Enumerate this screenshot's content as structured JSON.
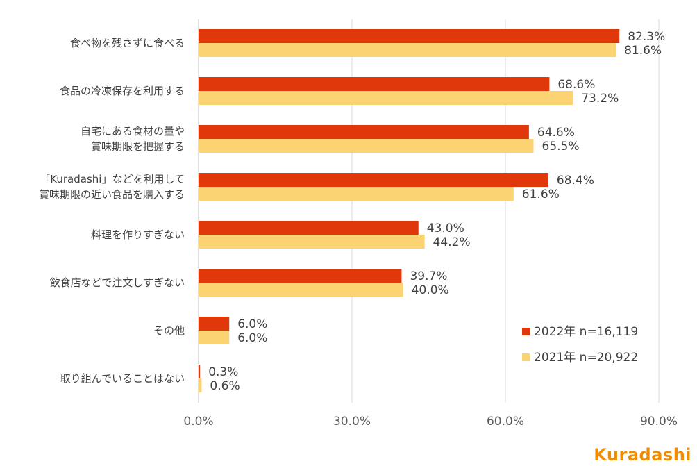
{
  "chart_data": {
    "type": "bar",
    "orientation": "horizontal",
    "categories": [
      [
        "食べ物を残さずに食べる"
      ],
      [
        "食品の冷凍保存を利用する"
      ],
      [
        "自宅にある食材の量や",
        "賞味期限を把握する"
      ],
      [
        "「Kuradashi」などを利用して",
        "賞味期限の近い食品を購入する"
      ],
      [
        "料理を作りすぎない"
      ],
      [
        "飲食店などで注文しすぎない"
      ],
      [
        "その他"
      ],
      [
        "取り組んでいることはない"
      ]
    ],
    "series": [
      {
        "name": "2022年 n=16,119",
        "color": "#e0380a",
        "values": [
          82.3,
          68.6,
          64.6,
          68.4,
          43.0,
          39.7,
          6.0,
          0.3
        ],
        "labels": [
          "82.3%",
          "68.6%",
          "64.6%",
          "68.4%",
          "43.0%",
          "39.7%",
          "6.0%",
          "0.3%"
        ]
      },
      {
        "name": "2021年 n=20,922",
        "color": "#fbd372",
        "values": [
          81.6,
          73.2,
          65.5,
          61.6,
          44.2,
          40.0,
          6.0,
          0.6
        ],
        "labels": [
          "81.6%",
          "73.2%",
          "65.5%",
          "61.6%",
          "44.2%",
          "40.0%",
          "6.0%",
          "0.6%"
        ]
      }
    ],
    "xlim": [
      0,
      90
    ],
    "xticks": [
      0,
      30,
      60,
      90
    ],
    "xtick_labels": [
      "0.0%",
      "30.0%",
      "60.0%",
      "90.0%"
    ],
    "grid": true,
    "legend": "bottom-right",
    "title": "",
    "xlabel": "",
    "ylabel": ""
  },
  "brand": {
    "logo_text": "Kuradashi"
  }
}
